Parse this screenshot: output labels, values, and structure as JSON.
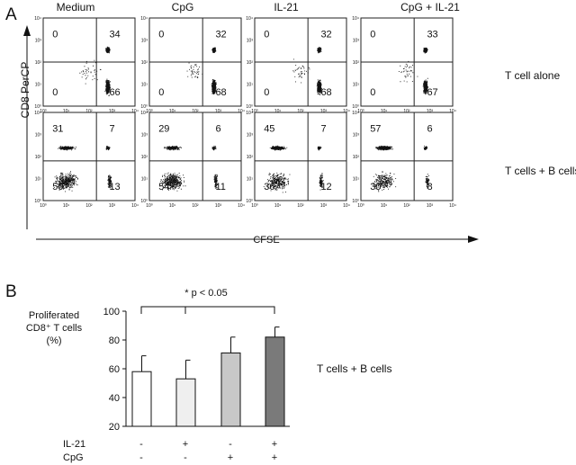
{
  "panel_a": {
    "label": "A",
    "y_axis_label": "CD8 PerCP",
    "x_axis_label": "CFSE",
    "tick_labels": [
      "10⁰",
      "10¹",
      "10²",
      "10³",
      "10⁴"
    ],
    "columns": [
      "Medium",
      "CpG",
      "IL-21",
      "CpG + IL-21"
    ],
    "rows": [
      {
        "label": "T cell alone",
        "plots": [
          {
            "q": [
              "0",
              "34",
              "0",
              "66"
            ]
          },
          {
            "q": [
              "0",
              "32",
              "0",
              "68"
            ]
          },
          {
            "q": [
              "0",
              "32",
              "0",
              "68"
            ]
          },
          {
            "q": [
              "0",
              "33",
              "0",
              "67"
            ]
          }
        ]
      },
      {
        "label": "T cells + B cells",
        "plots": [
          {
            "q": [
              "31",
              "7",
              "50",
              "13"
            ]
          },
          {
            "q": [
              "29",
              "6",
              "54",
              "11"
            ]
          },
          {
            "q": [
              "45",
              "7",
              "36",
              "12"
            ]
          },
          {
            "q": [
              "57",
              "6",
              "30",
              "8"
            ]
          }
        ]
      }
    ]
  },
  "panel_b": {
    "label": "B",
    "significance": "* p < 0.05",
    "side_label": "T cells + B cells",
    "ylabel_lines": [
      "Proliferated",
      "CD8⁺ T cells",
      "(%)"
    ],
    "row_labels": [
      "IL-21",
      "CpG"
    ],
    "conditions": [
      {
        "il21": "-",
        "cpg": "-"
      },
      {
        "il21": "+",
        "cpg": "-"
      },
      {
        "il21": "-",
        "cpg": "+"
      },
      {
        "il21": "+",
        "cpg": "+"
      }
    ]
  },
  "chart_data": {
    "type": "bar",
    "categories": [
      "IL-21 - / CpG -",
      "IL-21 + / CpG -",
      "IL-21 - / CpG +",
      "IL-21 + / CpG +"
    ],
    "values": [
      58,
      53,
      71,
      82
    ],
    "errors": [
      11,
      13,
      11,
      7
    ],
    "colors": [
      "#ffffff",
      "#efefef",
      "#c8c8c8",
      "#7a7a7a"
    ],
    "yticks": [
      20,
      40,
      60,
      80,
      100
    ],
    "ylim": [
      20,
      100
    ]
  }
}
